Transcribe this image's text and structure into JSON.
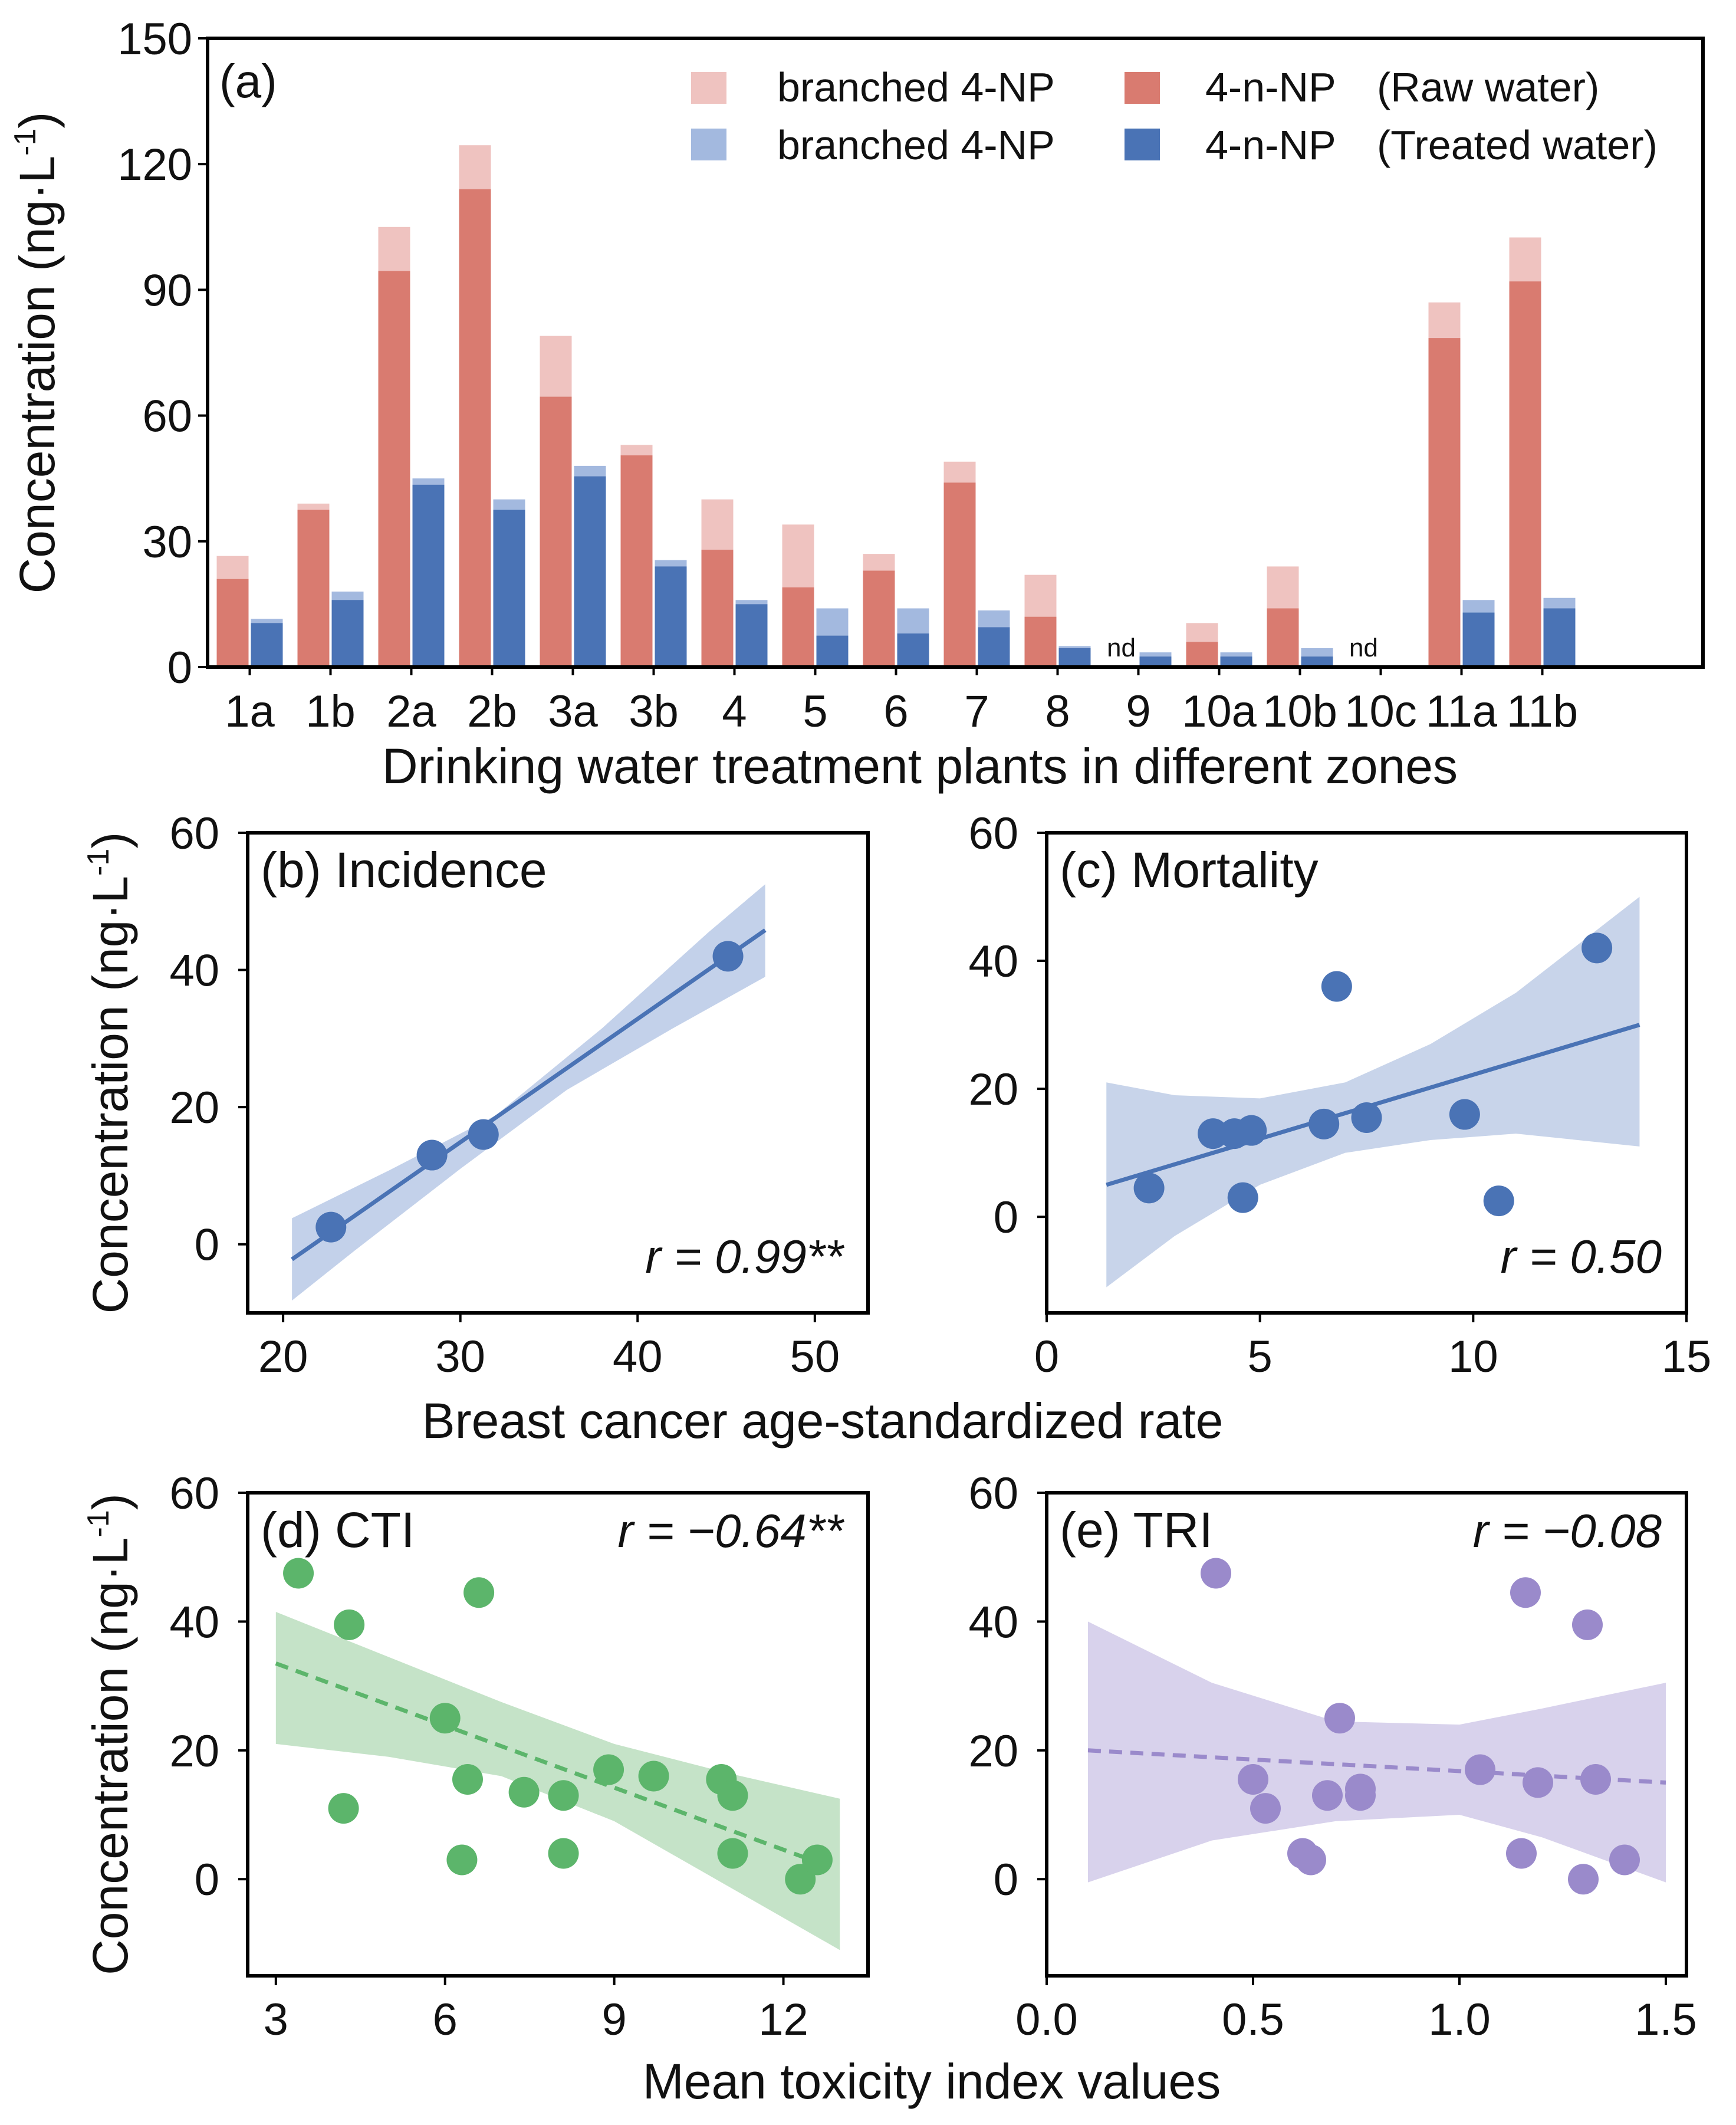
{
  "colors": {
    "raw_total": "#efc3c0",
    "raw_n": "#d97b70",
    "treated_total": "#a3b9df",
    "treated_n": "#4a73b5",
    "incidence": "#4a73b5",
    "incidence_band": "#c3d1ea",
    "mortality": "#4a73b5",
    "mortality_band": "#c8d4ea",
    "cti": "#5cb56b",
    "cti_band": "#c5e3c8",
    "tri": "#9a8acb",
    "tri_band": "#d8d2ec",
    "nd_text": "#8a8a8a"
  },
  "shared": {
    "ylabel_parts": [
      "Concentration (ng",
      "·L",
      "-1",
      ")"
    ],
    "bc_xlabel": "Breast cancer age-standardized rate",
    "tox_xlabel": "Mean toxicity index values"
  },
  "chart_data": [
    {
      "id": "a",
      "type": "bar",
      "panel_label": "(a)",
      "title": "",
      "xlabel": "Drinking water treatment plants in different zones",
      "ylabel": "Concentration (ng·L-1)",
      "ylim": [
        0,
        150
      ],
      "yticks": [
        0,
        30,
        60,
        90,
        120,
        150
      ],
      "grid": false,
      "legend_position": "top-right",
      "legend": {
        "raw_total": "branched 4-NP",
        "raw_n": "4-n-NP",
        "raw_group": "(Raw water)",
        "treated_total": "branched 4-NP",
        "treated_n": "4-n-NP",
        "treated_group": "(Treated water)"
      },
      "nd_label": "nd",
      "categories": [
        "1a",
        "1b",
        "2a",
        "2b",
        "3a",
        "3b",
        "4",
        "5",
        "6",
        "7",
        "8",
        "9",
        "10a",
        "10b",
        "10c",
        "11a",
        "11b"
      ],
      "series": [
        {
          "name": "Raw water total (4-n-NP + branched 4-NP)",
          "values": [
            26.5,
            39,
            105,
            124.5,
            79,
            53,
            40,
            34,
            27,
            49,
            22,
            null,
            10.5,
            24,
            null,
            87,
            102.5
          ]
        },
        {
          "name": "Raw water 4-n-NP",
          "values": [
            21,
            37.5,
            94.5,
            114,
            64.5,
            50.5,
            28,
            19,
            23,
            44,
            12,
            null,
            6,
            14,
            null,
            78.5,
            92
          ]
        },
        {
          "name": "Treated water total (4-n-NP + branched 4-NP)",
          "values": [
            11.5,
            18,
            45,
            40,
            48,
            25.5,
            16,
            14,
            14,
            13.5,
            5,
            3.5,
            3.5,
            4.5,
            null,
            16,
            16.5
          ]
        },
        {
          "name": "Treated water 4-n-NP",
          "values": [
            10.5,
            16,
            43.5,
            37.5,
            45.5,
            24,
            15,
            7.5,
            8,
            9.5,
            4.5,
            2.5,
            2.5,
            2.5,
            null,
            13,
            14
          ]
        }
      ],
      "nd": {
        "raw": [
          "9",
          "10c"
        ],
        "treated": [
          "10c"
        ]
      }
    },
    {
      "id": "b",
      "type": "scatter",
      "panel_label": "(b) Incidence",
      "annotation": "r = 0.99**",
      "xlim": [
        18,
        53
      ],
      "ylim": [
        -10,
        60
      ],
      "xticks": [
        20,
        30,
        40,
        50
      ],
      "yticks": [
        0,
        20,
        40,
        60
      ],
      "points": [
        [
          22.7,
          2.5
        ],
        [
          28.4,
          13
        ],
        [
          31.3,
          16
        ],
        [
          45.1,
          42
        ]
      ],
      "fit": {
        "x0": 20.5,
        "y0": -2.2,
        "x1": 47.2,
        "y1": 45.8,
        "style": "solid"
      },
      "band_upper": [
        [
          20.5,
          3.8
        ],
        [
          26,
          10.8
        ],
        [
          32,
          18.8
        ],
        [
          38,
          31.5
        ],
        [
          44,
          45.5
        ],
        [
          47.2,
          52.5
        ]
      ],
      "band_lower": [
        [
          20.5,
          -8.2
        ],
        [
          24,
          -1.0
        ],
        [
          30,
          11.0
        ],
        [
          36,
          22.5
        ],
        [
          42,
          31.5
        ],
        [
          47.2,
          39.0
        ]
      ]
    },
    {
      "id": "c",
      "type": "scatter",
      "panel_label": "(c) Mortality",
      "annotation": "r = 0.50",
      "xlim": [
        0,
        15
      ],
      "ylim": [
        -15,
        60
      ],
      "xticks": [
        0,
        5,
        10,
        15
      ],
      "yticks": [
        0,
        20,
        40,
        60
      ],
      "points": [
        [
          2.4,
          4.5
        ],
        [
          3.9,
          13
        ],
        [
          4.4,
          13
        ],
        [
          4.6,
          3
        ],
        [
          4.8,
          13.5
        ],
        [
          6.5,
          14.5
        ],
        [
          6.8,
          36
        ],
        [
          7.5,
          15.5
        ],
        [
          9.8,
          16
        ],
        [
          10.6,
          2.5
        ],
        [
          12.9,
          42
        ]
      ],
      "fit": {
        "x0": 1.4,
        "y0": 5,
        "x1": 13.9,
        "y1": 30,
        "style": "solid"
      },
      "band_upper": [
        [
          1.4,
          21
        ],
        [
          3,
          19
        ],
        [
          5,
          18.5
        ],
        [
          7,
          21
        ],
        [
          9,
          27
        ],
        [
          11,
          35
        ],
        [
          13.9,
          50
        ]
      ],
      "band_lower": [
        [
          1.4,
          -11
        ],
        [
          3,
          -3
        ],
        [
          5,
          5
        ],
        [
          7,
          10
        ],
        [
          9,
          12
        ],
        [
          11,
          13
        ],
        [
          13.9,
          11
        ]
      ]
    },
    {
      "id": "d",
      "type": "scatter",
      "panel_label": "(d) CTI",
      "annotation": "r = −0.64**",
      "xlim": [
        2.5,
        13.5
      ],
      "ylim": [
        -15,
        60
      ],
      "xticks": [
        3,
        6,
        9,
        12
      ],
      "xtick_labels": [
        "3",
        "6",
        "9",
        "12"
      ],
      "yticks": [
        0,
        20,
        40,
        60
      ],
      "points": [
        [
          3.4,
          47.5
        ],
        [
          4.2,
          11
        ],
        [
          4.3,
          39.5
        ],
        [
          6.0,
          25
        ],
        [
          6.3,
          3
        ],
        [
          6.4,
          15.5
        ],
        [
          6.6,
          44.5
        ],
        [
          7.4,
          13.5
        ],
        [
          8.1,
          4
        ],
        [
          8.1,
          13
        ],
        [
          8.9,
          17
        ],
        [
          9.7,
          16
        ],
        [
          10.9,
          15.5
        ],
        [
          11.1,
          13
        ],
        [
          11.1,
          4
        ],
        [
          12.3,
          0
        ],
        [
          12.6,
          3
        ]
      ],
      "fit": {
        "x0": 3.0,
        "y0": 33.5,
        "x1": 12.8,
        "y1": 2,
        "style": "dashed"
      },
      "band_upper": [
        [
          3.0,
          41.5
        ],
        [
          5,
          34.5
        ],
        [
          7,
          27.5
        ],
        [
          9,
          21
        ],
        [
          11,
          16.5
        ],
        [
          13.0,
          12.5
        ]
      ],
      "band_lower": [
        [
          3.0,
          21
        ],
        [
          5,
          19
        ],
        [
          7,
          16
        ],
        [
          9,
          9
        ],
        [
          11,
          -1
        ],
        [
          13.0,
          -11
        ]
      ]
    },
    {
      "id": "e",
      "type": "scatter",
      "panel_label": "(e) TRI",
      "annotation": "r = −0.08",
      "xlim": [
        0,
        1.55
      ],
      "ylim": [
        -15,
        60
      ],
      "xticks": [
        0,
        0.5,
        1.0,
        1.5
      ],
      "xtick_labels": [
        "0.0",
        "0.5",
        "1.0",
        "1.5"
      ],
      "yticks": [
        0,
        20,
        40,
        60
      ],
      "points": [
        [
          0.41,
          47.5
        ],
        [
          0.5,
          15.5
        ],
        [
          0.53,
          11
        ],
        [
          0.62,
          4
        ],
        [
          0.64,
          3
        ],
        [
          0.68,
          13
        ],
        [
          0.71,
          25
        ],
        [
          0.76,
          13
        ],
        [
          0.76,
          14
        ],
        [
          1.05,
          17
        ],
        [
          1.15,
          4
        ],
        [
          1.16,
          44.5
        ],
        [
          1.19,
          15
        ],
        [
          1.3,
          0
        ],
        [
          1.31,
          39.5
        ],
        [
          1.33,
          15.5
        ],
        [
          1.4,
          3
        ]
      ],
      "fit": {
        "x0": 0.1,
        "y0": 20,
        "x1": 1.5,
        "y1": 15,
        "style": "dashed"
      },
      "band_upper": [
        [
          0.1,
          40
        ],
        [
          0.4,
          30.5
        ],
        [
          0.7,
          24.5
        ],
        [
          1.0,
          24
        ],
        [
          1.2,
          26.5
        ],
        [
          1.5,
          30.5
        ]
      ],
      "band_lower": [
        [
          0.1,
          -0.5
        ],
        [
          0.4,
          6
        ],
        [
          0.7,
          9
        ],
        [
          1.0,
          10
        ],
        [
          1.2,
          6.5
        ],
        [
          1.5,
          -0.5
        ]
      ]
    }
  ]
}
